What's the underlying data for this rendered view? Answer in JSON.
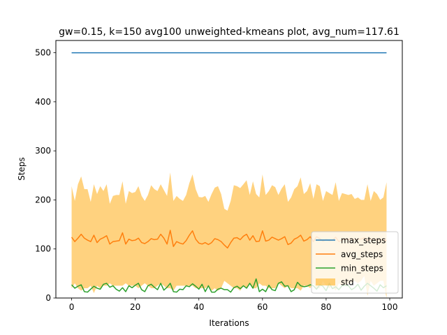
{
  "chart_data": {
    "type": "line",
    "title": "gw=0.15, k=150 avg100 unweighted-kmeans plot, avg_num=117.61",
    "xlabel": "Iterations",
    "ylabel": "Steps",
    "xlim": [
      -4.95,
      103.95
    ],
    "ylim": [
      0,
      525
    ],
    "xticks": [
      0,
      20,
      40,
      60,
      80,
      100
    ],
    "yticks": [
      0,
      100,
      200,
      300,
      400,
      500
    ],
    "grid": false,
    "legend_position": "lower right",
    "x": [
      0,
      1,
      2,
      3,
      4,
      5,
      6,
      7,
      8,
      9,
      10,
      11,
      12,
      13,
      14,
      15,
      16,
      17,
      18,
      19,
      20,
      21,
      22,
      23,
      24,
      25,
      26,
      27,
      28,
      29,
      30,
      31,
      32,
      33,
      34,
      35,
      36,
      37,
      38,
      39,
      40,
      41,
      42,
      43,
      44,
      45,
      46,
      47,
      48,
      49,
      50,
      51,
      52,
      53,
      54,
      55,
      56,
      57,
      58,
      59,
      60,
      61,
      62,
      63,
      64,
      65,
      66,
      67,
      68,
      69,
      70,
      71,
      72,
      73,
      74,
      75,
      76,
      77,
      78,
      79,
      80,
      81,
      82,
      83,
      84,
      85,
      86,
      87,
      88,
      89,
      90,
      91,
      92,
      93,
      94,
      95,
      96,
      97,
      98,
      99
    ],
    "series": [
      {
        "name": "max_steps",
        "color": "#1f77b4",
        "values": [
          500,
          500,
          500,
          500,
          500,
          500,
          500,
          500,
          500,
          500,
          500,
          500,
          500,
          500,
          500,
          500,
          500,
          500,
          500,
          500,
          500,
          500,
          500,
          500,
          500,
          500,
          500,
          500,
          500,
          500,
          500,
          500,
          500,
          500,
          500,
          500,
          500,
          500,
          500,
          500,
          500,
          500,
          500,
          500,
          500,
          500,
          500,
          500,
          500,
          500,
          500,
          500,
          500,
          500,
          500,
          500,
          500,
          500,
          500,
          500,
          500,
          500,
          500,
          500,
          500,
          500,
          500,
          500,
          500,
          500,
          500,
          500,
          500,
          500,
          500,
          500,
          500,
          500,
          500,
          500,
          500,
          500,
          500,
          500,
          500,
          500,
          500,
          500,
          500,
          500,
          500,
          500,
          500,
          500,
          500,
          500,
          500,
          500,
          500,
          500
        ]
      },
      {
        "name": "avg_steps",
        "color": "#ff7f0e",
        "values": [
          124,
          115,
          122,
          130,
          122,
          118,
          115,
          128,
          113,
          120,
          123,
          127,
          110,
          115,
          116,
          117,
          133,
          110,
          120,
          117,
          118,
          122,
          113,
          111,
          115,
          121,
          119,
          120,
          130,
          122,
          110,
          138,
          105,
          115,
          112,
          110,
          117,
          128,
          137,
          120,
          112,
          110,
          113,
          109,
          113,
          121,
          119,
          115,
          108,
          102,
          113,
          122,
          123,
          119,
          126,
          130,
          118,
          127,
          115,
          116,
          137,
          116,
          118,
          124,
          121,
          118,
          121,
          125,
          109,
          112,
          120,
          123,
          128,
          116,
          119,
          125,
          115,
          125,
          121,
          116,
          119,
          117,
          118,
          124,
          115,
          118,
          120,
          119,
          121,
          118,
          120,
          120,
          123,
          117,
          119,
          121,
          118,
          118,
          120,
          116
        ],
        "markers": false
      },
      {
        "name": "min_steps",
        "color": "#2ca02c",
        "values": [
          27,
          20,
          24,
          27,
          13,
          12,
          18,
          24,
          20,
          18,
          28,
          30,
          22,
          25,
          18,
          14,
          21,
          13,
          25,
          21,
          26,
          30,
          17,
          13,
          25,
          28,
          22,
          17,
          30,
          16,
          22,
          30,
          13,
          12,
          18,
          17,
          25,
          23,
          29,
          24,
          18,
          28,
          13,
          25,
          12,
          12,
          18,
          20,
          17,
          17,
          12,
          21,
          24,
          19,
          25,
          20,
          30,
          20,
          39,
          13,
          18,
          13,
          26,
          17,
          15,
          30,
          33,
          24,
          25,
          13,
          17,
          32,
          25,
          23,
          24,
          27,
          25,
          18,
          27,
          24,
          15,
          30,
          19,
          23,
          17,
          25,
          26,
          25,
          17,
          21,
          28,
          16,
          24,
          30,
          25,
          20,
          14,
          27,
          21,
          25
        ]
      }
    ],
    "band": {
      "name": "std",
      "color": "#ffa500",
      "opacity": 0.5,
      "upper": [
        228,
        198,
        232,
        248,
        222,
        222,
        196,
        232,
        212,
        228,
        218,
        232,
        192,
        208,
        210,
        210,
        238,
        192,
        218,
        214,
        216,
        228,
        208,
        198,
        210,
        230,
        222,
        218,
        232,
        220,
        208,
        256,
        198,
        208,
        202,
        198,
        210,
        234,
        252,
        222,
        206,
        205,
        208,
        196,
        212,
        225,
        228,
        212,
        182,
        178,
        198,
        230,
        228,
        224,
        232,
        240,
        210,
        238,
        212,
        205,
        252,
        210,
        218,
        230,
        226,
        210,
        223,
        232,
        196,
        205,
        222,
        228,
        246,
        212,
        218,
        234,
        202,
        232,
        228,
        198,
        218,
        214,
        210,
        236,
        198,
        214,
        212,
        210,
        212,
        202,
        205,
        200,
        200,
        232,
        198,
        218,
        212,
        200,
        205,
        236
      ],
      "lower": [
        20,
        30,
        20,
        15,
        20,
        20,
        25,
        10,
        25,
        20,
        25,
        25,
        30,
        25,
        25,
        25,
        25,
        30,
        25,
        25,
        25,
        20,
        25,
        30,
        25,
        20,
        20,
        25,
        30,
        25,
        20,
        20,
        15,
        25,
        25,
        25,
        25,
        25,
        25,
        20,
        20,
        20,
        20,
        25,
        15,
        20,
        15,
        20,
        35,
        30,
        25,
        20,
        20,
        15,
        25,
        20,
        30,
        20,
        20,
        30,
        25,
        25,
        20,
        20,
        20,
        30,
        25,
        20,
        25,
        20,
        20,
        20,
        15,
        25,
        25,
        20,
        30,
        20,
        20,
        35,
        25,
        20,
        25,
        15,
        30,
        25,
        25,
        30,
        30,
        35,
        30,
        35,
        45,
        5,
        35,
        25,
        30,
        35,
        35,
        0
      ]
    },
    "legend_entries": [
      "max_steps",
      "avg_steps",
      "min_steps",
      "std"
    ]
  }
}
